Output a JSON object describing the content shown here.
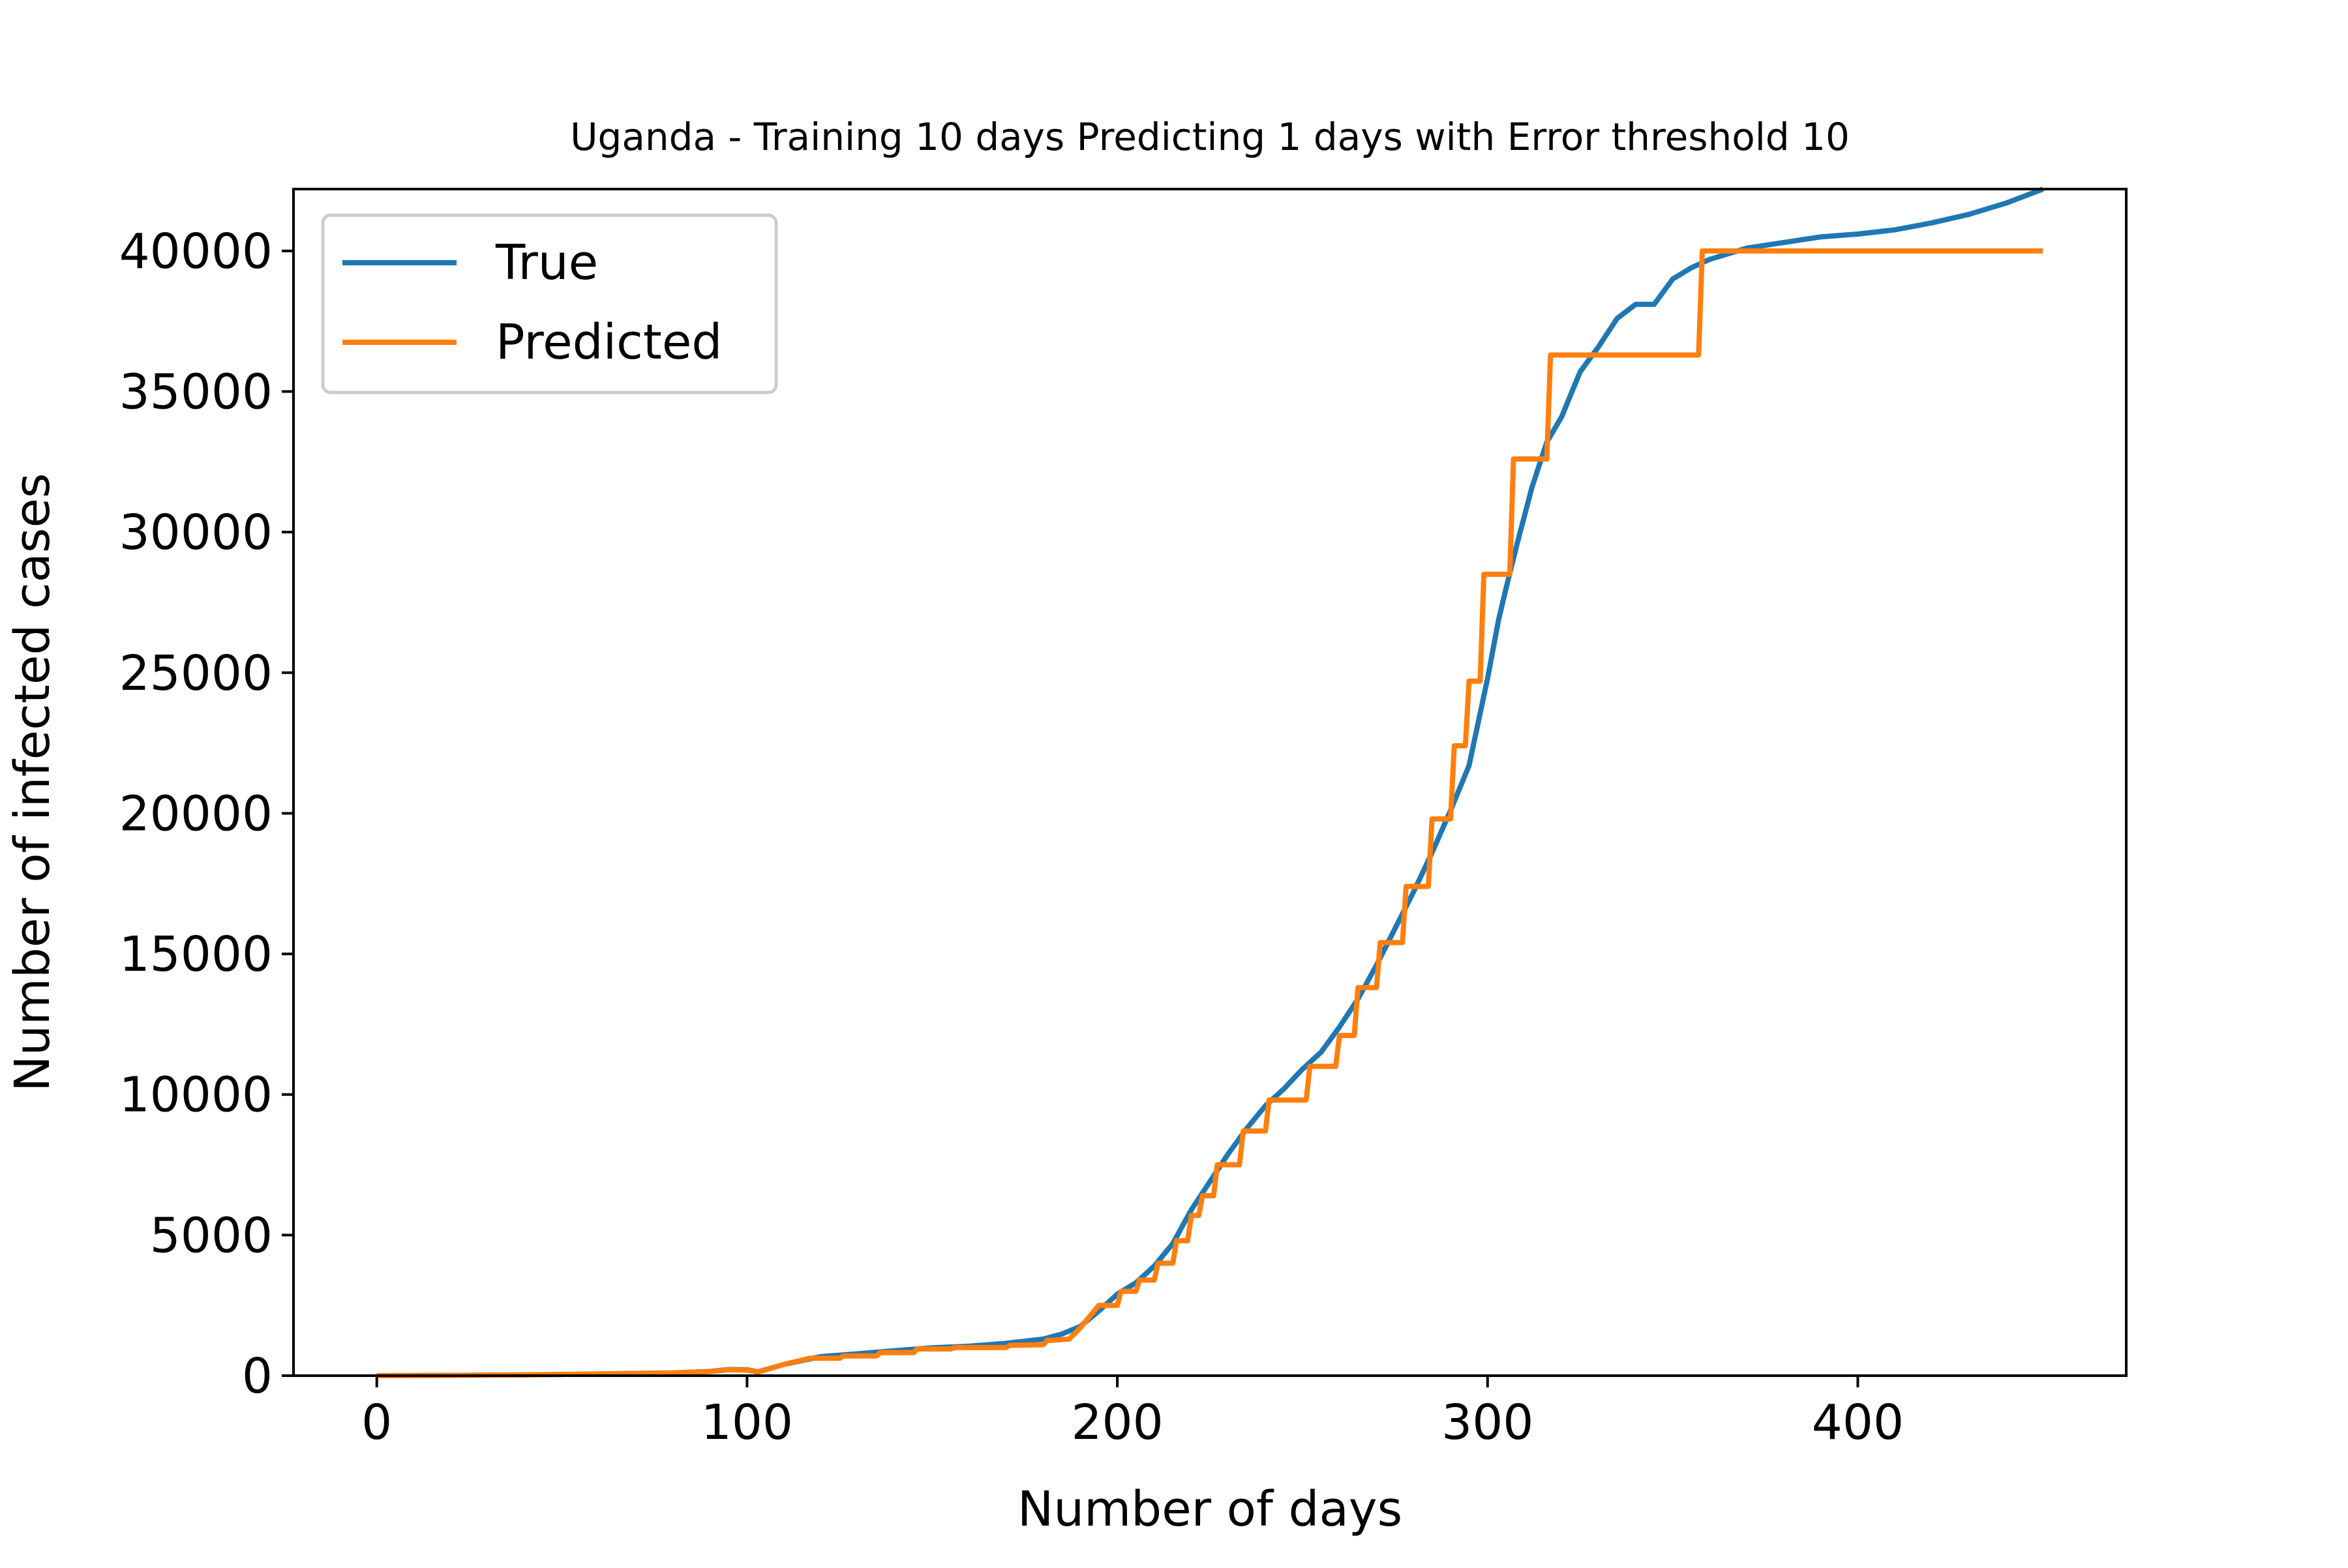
{
  "chart_data": {
    "type": "line",
    "title": "Uganda - Training 10 days Predicting 1 days with Error threshold 10",
    "xlabel": "Number of days",
    "ylabel": "Number of infected cases",
    "xlim": [
      -22.5,
      472.5
    ],
    "ylim": [
      0,
      42200
    ],
    "x_ticks": [
      0,
      100,
      200,
      300,
      400
    ],
    "y_ticks": [
      0,
      5000,
      10000,
      15000,
      20000,
      25000,
      30000,
      35000,
      40000
    ],
    "legend_position": "top-left",
    "grid": false,
    "series": [
      {
        "name": "True",
        "color": "#1f77b4",
        "points": [
          [
            0,
            0
          ],
          [
            20,
            10
          ],
          [
            40,
            30
          ],
          [
            60,
            60
          ],
          [
            80,
            100
          ],
          [
            90,
            150
          ],
          [
            95,
            220
          ],
          [
            100,
            210
          ],
          [
            103,
            140
          ],
          [
            110,
            400
          ],
          [
            120,
            680
          ],
          [
            130,
            780
          ],
          [
            140,
            890
          ],
          [
            150,
            990
          ],
          [
            160,
            1050
          ],
          [
            170,
            1150
          ],
          [
            180,
            1300
          ],
          [
            185,
            1480
          ],
          [
            190,
            1750
          ],
          [
            195,
            2300
          ],
          [
            200,
            2900
          ],
          [
            205,
            3300
          ],
          [
            210,
            3900
          ],
          [
            215,
            4700
          ],
          [
            220,
            5900
          ],
          [
            225,
            6900
          ],
          [
            230,
            7900
          ],
          [
            235,
            8800
          ],
          [
            240,
            9600
          ],
          [
            245,
            10200
          ],
          [
            250,
            10900
          ],
          [
            255,
            11500
          ],
          [
            260,
            12400
          ],
          [
            265,
            13400
          ],
          [
            270,
            14600
          ],
          [
            275,
            15900
          ],
          [
            280,
            17200
          ],
          [
            285,
            18600
          ],
          [
            290,
            20100
          ],
          [
            295,
            21700
          ],
          [
            300,
            24800
          ],
          [
            303,
            26900
          ],
          [
            305,
            28000
          ],
          [
            308,
            29600
          ],
          [
            312,
            31600
          ],
          [
            316,
            33200
          ],
          [
            320,
            34100
          ],
          [
            325,
            35700
          ],
          [
            330,
            36600
          ],
          [
            335,
            37600
          ],
          [
            340,
            38100
          ],
          [
            345,
            38100
          ],
          [
            350,
            39000
          ],
          [
            355,
            39400
          ],
          [
            360,
            39700
          ],
          [
            365,
            39900
          ],
          [
            370,
            40100
          ],
          [
            380,
            40300
          ],
          [
            390,
            40500
          ],
          [
            400,
            40600
          ],
          [
            410,
            40750
          ],
          [
            420,
            41000
          ],
          [
            430,
            41300
          ],
          [
            440,
            41700
          ],
          [
            450,
            42200
          ]
        ]
      },
      {
        "name": "Predicted",
        "color": "#ff7f0e",
        "points": [
          [
            0,
            0
          ],
          [
            20,
            10
          ],
          [
            40,
            30
          ],
          [
            60,
            60
          ],
          [
            80,
            100
          ],
          [
            90,
            150
          ],
          [
            95,
            210
          ],
          [
            100,
            200
          ],
          [
            103,
            130
          ],
          [
            110,
            400
          ],
          [
            117,
            620
          ],
          [
            125,
            620
          ],
          [
            126,
            700
          ],
          [
            135,
            700
          ],
          [
            136,
            820
          ],
          [
            145,
            820
          ],
          [
            146,
            950
          ],
          [
            155,
            950
          ],
          [
            156,
            1000
          ],
          [
            170,
            1000
          ],
          [
            171,
            1080
          ],
          [
            180,
            1100
          ],
          [
            181,
            1250
          ],
          [
            187,
            1300
          ],
          [
            190,
            1700
          ],
          [
            195,
            2500
          ],
          [
            200,
            2500
          ],
          [
            201,
            3000
          ],
          [
            205,
            3000
          ],
          [
            206,
            3400
          ],
          [
            210,
            3400
          ],
          [
            211,
            4000
          ],
          [
            215,
            4000
          ],
          [
            216,
            4800
          ],
          [
            219,
            4800
          ],
          [
            220,
            5700
          ],
          [
            222,
            5700
          ],
          [
            223,
            6400
          ],
          [
            226,
            6400
          ],
          [
            227,
            7500
          ],
          [
            233,
            7500
          ],
          [
            234,
            8700
          ],
          [
            240,
            8700
          ],
          [
            241,
            9800
          ],
          [
            251,
            9800
          ],
          [
            252,
            11000
          ],
          [
            259,
            11000
          ],
          [
            260,
            12100
          ],
          [
            264,
            12100
          ],
          [
            265,
            13800
          ],
          [
            270,
            13800
          ],
          [
            271,
            15400
          ],
          [
            277,
            15400
          ],
          [
            278,
            17400
          ],
          [
            284,
            17400
          ],
          [
            285,
            19800
          ],
          [
            290,
            19800
          ],
          [
            291,
            22400
          ],
          [
            294,
            22400
          ],
          [
            295,
            24700
          ],
          [
            298,
            24700
          ],
          [
            299,
            28500
          ],
          [
            306,
            28500
          ],
          [
            307,
            32600
          ],
          [
            316,
            32600
          ],
          [
            317,
            36300
          ],
          [
            357,
            36300
          ],
          [
            358,
            40000
          ],
          [
            450,
            40000
          ]
        ]
      }
    ]
  }
}
